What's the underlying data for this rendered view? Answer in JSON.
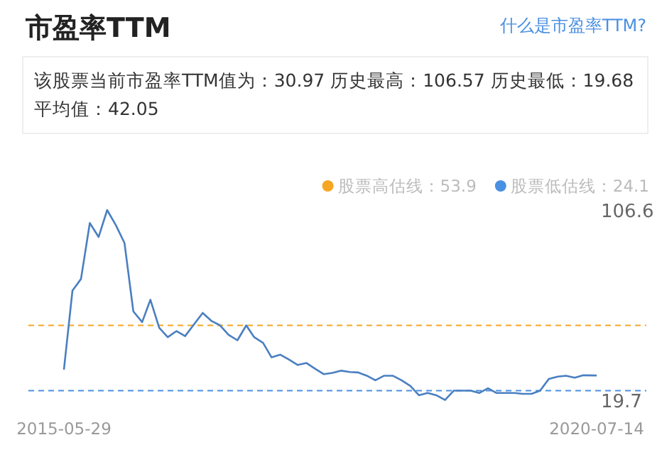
{
  "chart_data": {
    "type": "line",
    "title": "市盈率TTM",
    "subtitle": "该股票当前市盈率TTM值为：30.97 历史最高：106.57 历史最低：19.68\n平均值：42.05",
    "annotations": [
      "什么是市盈率TTM?"
    ],
    "x": [
      "2015-05-29",
      "2015-06-28",
      "2015-07-28",
      "2015-08-28",
      "2015-09-28",
      "2015-10-28",
      "2015-11-28",
      "2015-12-28",
      "2016-01-28",
      "2016-02-28",
      "2016-03-28",
      "2016-04-28",
      "2016-05-28",
      "2016-06-28",
      "2016-07-28",
      "2016-08-28",
      "2016-09-28",
      "2016-10-28",
      "2016-11-28",
      "2016-12-28",
      "2017-01-28",
      "2017-02-28",
      "2017-03-28",
      "2017-04-28",
      "2017-05-28",
      "2017-06-28",
      "2017-07-28",
      "2017-08-28",
      "2017-09-28",
      "2017-10-28",
      "2017-11-28",
      "2017-12-28",
      "2018-01-28",
      "2018-02-28",
      "2018-03-28",
      "2018-04-28",
      "2018-05-28",
      "2018-06-28",
      "2018-07-28",
      "2018-08-28",
      "2018-09-28",
      "2018-10-28",
      "2018-11-28",
      "2018-12-28",
      "2019-01-28",
      "2019-02-28",
      "2019-03-28",
      "2019-04-28",
      "2019-05-28",
      "2019-06-28",
      "2019-07-28",
      "2019-08-28",
      "2019-09-28",
      "2019-10-28",
      "2019-11-28",
      "2019-12-28",
      "2020-01-28",
      "2020-02-28",
      "2020-03-28",
      "2020-04-28",
      "2020-05-28",
      "2020-07-14"
    ],
    "series": [
      {
        "color": "#4a7fc1",
        "values": [
          33.7,
          69.8,
          75.1,
          100.7,
          94.3,
          106.6,
          99.6,
          91.5,
          60.3,
          55.4,
          65.6,
          52.8,
          48.5,
          51.3,
          49.0,
          54.3,
          59.6,
          56.0,
          53.9,
          49.6,
          47.1,
          53.9,
          48.5,
          45.9,
          39.3,
          40.5,
          38.3,
          35.8,
          36.7,
          34.1,
          31.6,
          32.2,
          33.2,
          32.6,
          32.4,
          30.9,
          28.8,
          30.9,
          30.9,
          28.8,
          26.2,
          22.0,
          23.0,
          22.0,
          19.8,
          24.1,
          24.1,
          24.1,
          23.0,
          25.2,
          23.0,
          23.0,
          23.0,
          22.6,
          22.6,
          24.1,
          29.4,
          30.5,
          30.9,
          30.0,
          31.1,
          31.0
        ]
      }
    ],
    "xlim": [
      "2015-05-29",
      "2020-07-14"
    ],
    "xticks": [
      "2015-05-29",
      "2020-07-14"
    ],
    "ylim": [
      19.7,
      106.6
    ],
    "yticks": [
      106.6,
      19.7
    ],
    "ref_lines": [
      {
        "axis": "y",
        "value": 53.9,
        "label": "股票高估线：53.9",
        "color": "#f5a623",
        "line_style": "dashed"
      },
      {
        "axis": "y",
        "value": 24.1,
        "label": "股票低估线：24.1",
        "color": "#4a90e2",
        "line_style": "dashed"
      }
    ],
    "legend": "top right"
  }
}
